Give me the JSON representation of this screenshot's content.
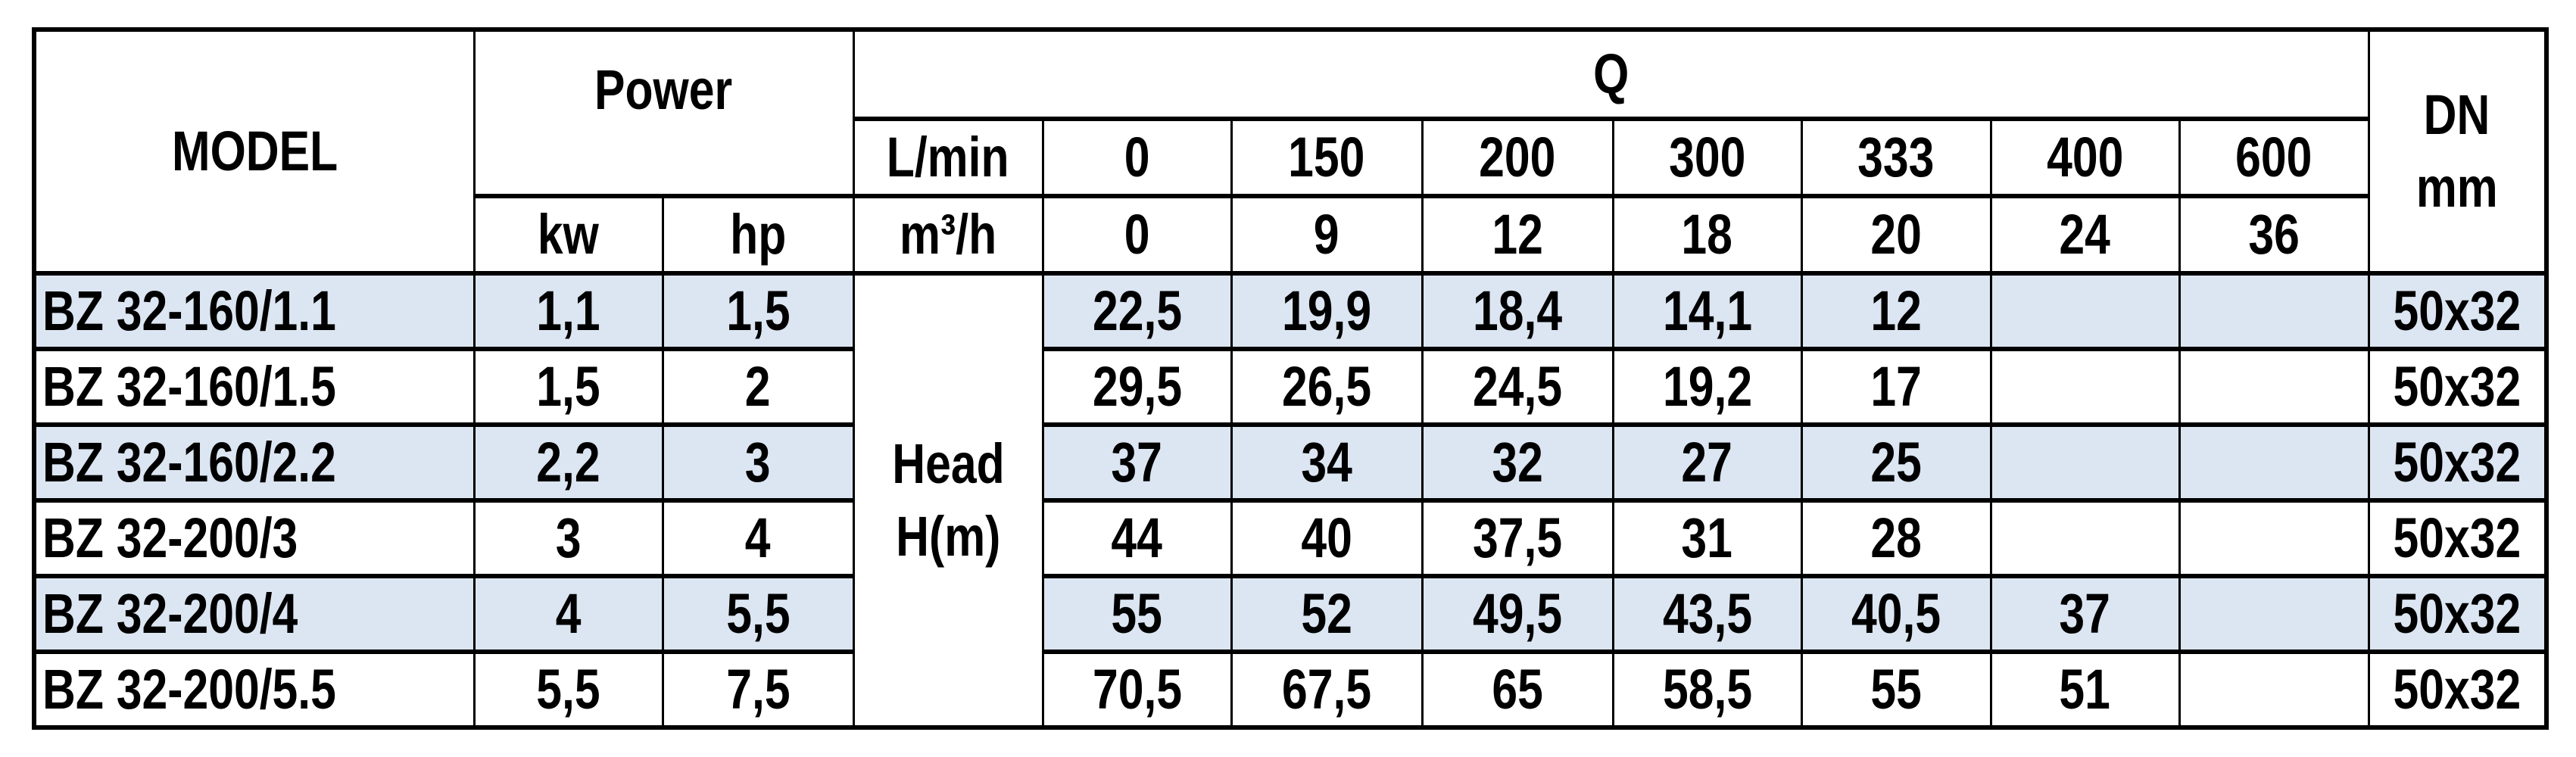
{
  "header": {
    "model": "MODEL",
    "power": "Power",
    "q": "Q",
    "dn_line1": "DN",
    "dn_line2": "mm",
    "flow_unit_lmin": "L/min",
    "flow_unit_m3h": "m³/h",
    "kw": "kw",
    "hp": "hp",
    "flow_lmin": [
      "0",
      "150",
      "200",
      "300",
      "333",
      "400",
      "600"
    ],
    "flow_m3h": [
      "0",
      "9",
      "12",
      "18",
      "20",
      "24",
      "36"
    ]
  },
  "head_label_line1": "Head",
  "head_label_line2": "H(m)",
  "shade_color": "#dce6f2",
  "rows": [
    {
      "model": "BZ 32-160/1.1",
      "kw": "1,1",
      "hp": "1,5",
      "head": [
        "22,5",
        "19,9",
        "18,4",
        "14,1",
        "12",
        "",
        ""
      ],
      "dn": "50x32"
    },
    {
      "model": "BZ 32-160/1.5",
      "kw": "1,5",
      "hp": "2",
      "head": [
        "29,5",
        "26,5",
        "24,5",
        "19,2",
        "17",
        "",
        ""
      ],
      "dn": "50x32"
    },
    {
      "model": "BZ 32-160/2.2",
      "kw": "2,2",
      "hp": "3",
      "head": [
        "37",
        "34",
        "32",
        "27",
        "25",
        "",
        ""
      ],
      "dn": "50x32"
    },
    {
      "model": "BZ 32-200/3",
      "kw": "3",
      "hp": "4",
      "head": [
        "44",
        "40",
        "37,5",
        "31",
        "28",
        "",
        ""
      ],
      "dn": "50x32"
    },
    {
      "model": "BZ 32-200/4",
      "kw": "4",
      "hp": "5,5",
      "head": [
        "55",
        "52",
        "49,5",
        "43,5",
        "40,5",
        "37",
        ""
      ],
      "dn": "50x32"
    },
    {
      "model": "BZ 32-200/5.5",
      "kw": "5,5",
      "hp": "7,5",
      "head": [
        "70,5",
        "67,5",
        "65",
        "58,5",
        "55",
        "51",
        ""
      ],
      "dn": "50x32"
    }
  ]
}
